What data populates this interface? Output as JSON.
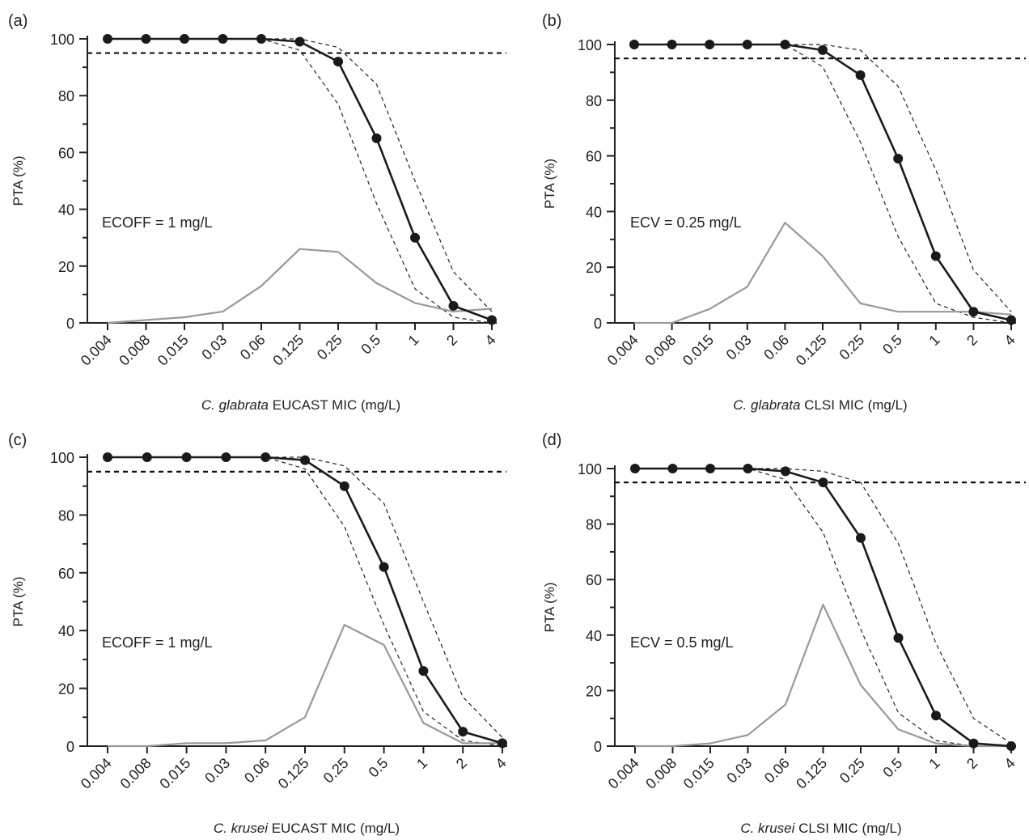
{
  "chart_data": [
    {
      "type": "line",
      "panel_label": "(a)",
      "categories": [
        "0.004",
        "0.008",
        "0.015",
        "0.03",
        "0.06",
        "0.125",
        "0.25",
        "0.5",
        "1",
        "2",
        "4"
      ],
      "xlabel_italic": "C. glabrata",
      "xlabel_rest": " EUCAST MIC (mg/L)",
      "ylabel": "PTA (%)",
      "ylim": [
        0,
        100
      ],
      "yticks": [
        0,
        20,
        40,
        60,
        80,
        100
      ],
      "annotation": "ECOFF = 1 mg/L",
      "threshold": 95,
      "series": [
        {
          "values": [
            100,
            100,
            100,
            100,
            100,
            99,
            92,
            65,
            30,
            6,
            1
          ]
        },
        {
          "values": [
            100,
            100,
            100,
            100,
            100,
            100,
            97,
            84,
            50,
            18,
            4
          ]
        },
        {
          "values": [
            100,
            100,
            100,
            100,
            100,
            96,
            77,
            42,
            12,
            2,
            0
          ]
        },
        {
          "values": [
            0,
            1,
            2,
            4,
            13,
            26,
            25,
            14,
            7,
            4,
            5
          ]
        }
      ]
    },
    {
      "type": "line",
      "panel_label": "(b)",
      "categories": [
        "0.004",
        "0.008",
        "0.015",
        "0.03",
        "0.06",
        "0.125",
        "0.25",
        "0.5",
        "1",
        "2",
        "4"
      ],
      "xlabel_italic": "C. glabrata",
      "xlabel_rest": " CLSI MIC (mg/L)",
      "ylabel": "PTA (%)",
      "ylim": [
        0,
        100
      ],
      "yticks": [
        0,
        20,
        40,
        60,
        80,
        100
      ],
      "annotation": "ECV = 0.25 mg/L",
      "threshold": 95,
      "series": [
        {
          "values": [
            100,
            100,
            100,
            100,
            100,
            98,
            89,
            59,
            24,
            4,
            1
          ]
        },
        {
          "values": [
            100,
            100,
            100,
            100,
            100,
            100,
            98,
            85,
            55,
            19,
            4
          ]
        },
        {
          "values": [
            100,
            100,
            100,
            100,
            100,
            92,
            65,
            31,
            7,
            2,
            0
          ]
        },
        {
          "values": [
            0,
            0,
            5,
            13,
            36,
            24,
            7,
            4,
            4,
            4,
            3
          ]
        }
      ]
    },
    {
      "type": "line",
      "panel_label": "(c)",
      "categories": [
        "0.004",
        "0.008",
        "0.015",
        "0.03",
        "0.06",
        "0.125",
        "0.25",
        "0.5",
        "1",
        "2",
        "4"
      ],
      "xlabel_italic": "C. krusei",
      "xlabel_rest": " EUCAST MIC (mg/L)",
      "ylabel": "PTA (%)",
      "ylim": [
        0,
        100
      ],
      "yticks": [
        0,
        20,
        40,
        60,
        80,
        100
      ],
      "annotation": "ECOFF = 1 mg/L",
      "threshold": 95,
      "series": [
        {
          "values": [
            100,
            100,
            100,
            100,
            100,
            99,
            90,
            62,
            26,
            5,
            1
          ]
        },
        {
          "values": [
            100,
            100,
            100,
            100,
            100,
            100,
            97,
            84,
            50,
            17,
            3
          ]
        },
        {
          "values": [
            100,
            100,
            100,
            100,
            100,
            96,
            76,
            42,
            12,
            2,
            0
          ]
        },
        {
          "values": [
            0,
            0,
            1,
            1,
            2,
            10,
            42,
            35,
            8,
            1,
            1
          ]
        }
      ]
    },
    {
      "type": "line",
      "panel_label": "(d)",
      "categories": [
        "0.004",
        "0.008",
        "0.015",
        "0.03",
        "0.06",
        "0.125",
        "0.25",
        "0.5",
        "1",
        "2",
        "4"
      ],
      "xlabel_italic": "C. krusei",
      "xlabel_rest": " CLSI MIC (mg/L)",
      "ylabel": "PTA (%)",
      "ylim": [
        0,
        100
      ],
      "yticks": [
        0,
        20,
        40,
        60,
        80,
        100
      ],
      "annotation": "ECV = 0.5 mg/L",
      "threshold": 95,
      "series": [
        {
          "values": [
            100,
            100,
            100,
            100,
            99,
            95,
            75,
            39,
            11,
            1,
            0
          ]
        },
        {
          "values": [
            100,
            100,
            100,
            100,
            100,
            99,
            95,
            73,
            37,
            10,
            1
          ]
        },
        {
          "values": [
            100,
            100,
            100,
            100,
            96,
            77,
            42,
            12,
            2,
            0,
            0
          ]
        },
        {
          "values": [
            0,
            0,
            1,
            4,
            15,
            51,
            22,
            6,
            1,
            0,
            0
          ]
        }
      ]
    }
  ]
}
